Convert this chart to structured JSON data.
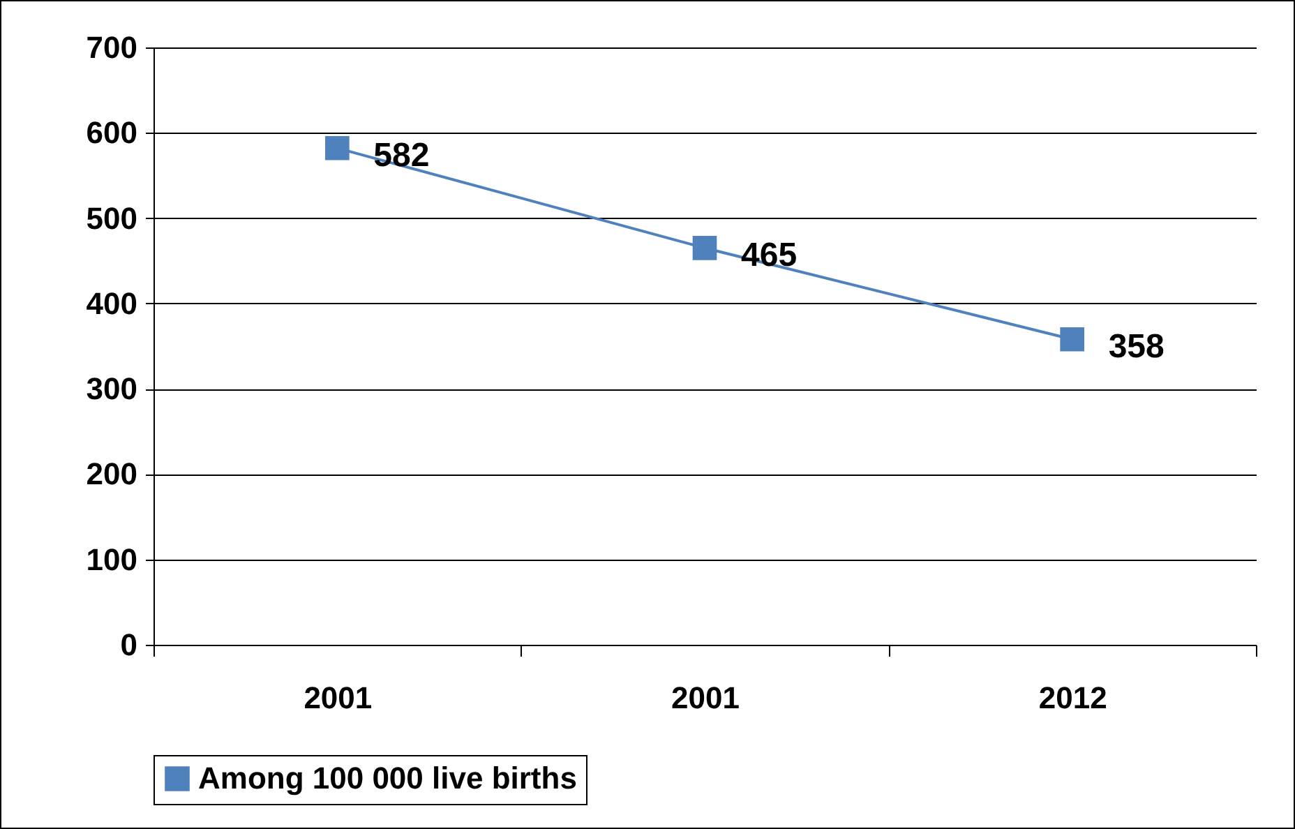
{
  "chart_data": {
    "type": "line",
    "categories": [
      "2001",
      "2001",
      "2012"
    ],
    "series": [
      {
        "name": "Among 100 000 live births",
        "color": "#4f81bd",
        "values": [
          582,
          465,
          358
        ]
      }
    ],
    "ylim": [
      0,
      700
    ],
    "yticks": [
      0,
      100,
      200,
      300,
      400,
      500,
      600,
      700
    ],
    "grid": "y",
    "legend": "bottom",
    "marker": "square",
    "line_style": "solid",
    "data_labels": true
  }
}
